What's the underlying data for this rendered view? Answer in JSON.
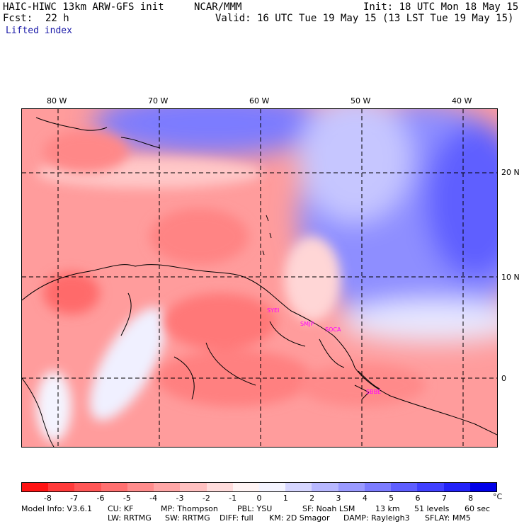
{
  "header": {
    "model_title": "HAIC-HIWC 13km ARW-GFS init",
    "org": "NCAR/MMM",
    "init": "Init: 18 UTC Mon 18 May 15",
    "fcst_label": "Fcst:",
    "fcst_value": "22 h",
    "valid": "Valid: 16 UTC Tue 19 May 15 (13 LST Tue 19 May 15)",
    "field": "Lifted index"
  },
  "map": {
    "longitude_ticks": [
      "80 W",
      "70 W",
      "60 W",
      "50 W",
      "40 W"
    ],
    "latitude_ticks": [
      "20 N",
      "10 N",
      "0"
    ],
    "stations": [
      "SYEI",
      "SMJP",
      "SOCA",
      "SBBE"
    ]
  },
  "colorbar": {
    "labels": [
      "-8",
      "-7",
      "-6",
      "-5",
      "-4",
      "-3",
      "-2",
      "-1",
      "0",
      "1",
      "2",
      "3",
      "4",
      "5",
      "6",
      "7",
      "8"
    ],
    "unit": "°C",
    "colors": [
      "#ff1414",
      "#ff3a3a",
      "#ff5656",
      "#ff7070",
      "#ff8c8c",
      "#ffa6a6",
      "#ffc0c0",
      "#ffdcdc",
      "#fff4f4",
      "#f4f4ff",
      "#d6d6ff",
      "#b8b8ff",
      "#9a9aff",
      "#7c7cff",
      "#5e5eff",
      "#4040ff",
      "#2222f8",
      "#0000e8"
    ]
  },
  "footer": {
    "line1": [
      "Model Info: V3.6.1",
      "CU: KF",
      "MP: Thompson",
      "PBL: YSU",
      "SF: Noah LSM",
      "13 km",
      "51 levels",
      "60 sec"
    ],
    "line2": [
      "LW: RRTMG",
      "SW: RRTMG",
      "DIFF: full",
      "KM: 2D Smagor",
      "DAMP: Rayleigh3",
      "SFLAY: MM5"
    ]
  }
}
